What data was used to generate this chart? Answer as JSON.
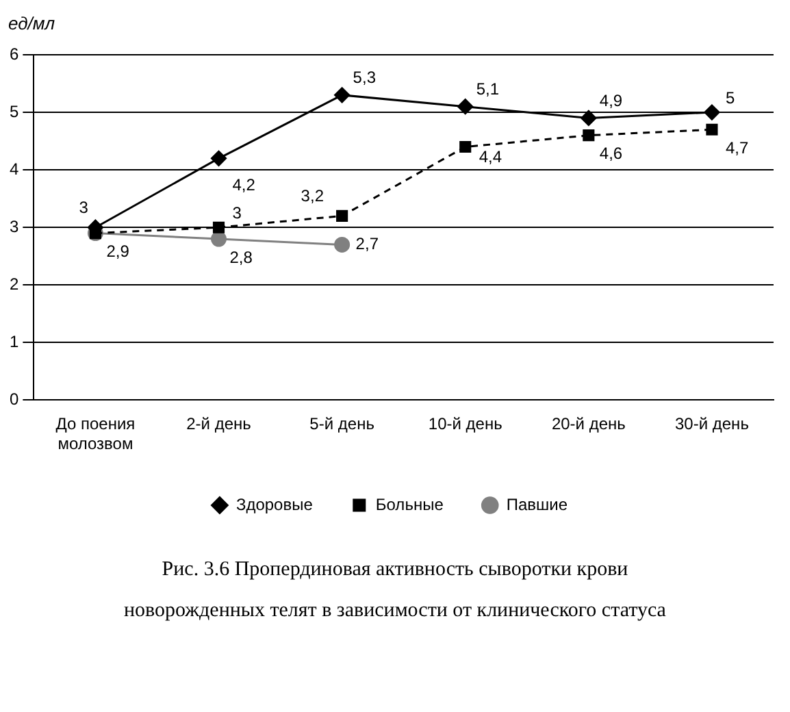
{
  "chart_data": {
    "type": "line",
    "title": "Рис. 3.6 Пропердиновая активность сыворотки крови новорожденных телят в зависимости от клинического статуса",
    "ylabel": "ед/мл",
    "categories": [
      "До поения молозвом",
      "2-й день",
      "5-й день",
      "10-й день",
      "20-й день",
      "30-й день"
    ],
    "series": [
      {
        "name": "Здоровые",
        "color": "#000000",
        "marker": "diamond",
        "line_style": "solid",
        "values": [
          3,
          4.2,
          5.3,
          5.1,
          4.9,
          5
        ],
        "value_labels": [
          "3",
          "4,2",
          "5,3",
          "5,1",
          "4,9",
          "5"
        ]
      },
      {
        "name": "Больные",
        "color": "#000000",
        "marker": "square",
        "line_style": "dashed",
        "values": [
          2.9,
          3,
          3.2,
          4.4,
          4.6,
          4.7
        ],
        "value_labels": [
          "2,9",
          "3",
          "3,2",
          "4,4",
          "4,6",
          "4,7"
        ]
      },
      {
        "name": "Павшие",
        "color": "#808080",
        "marker": "circle",
        "line_style": "solid",
        "values": [
          2.9,
          2.8,
          2.7,
          null,
          null,
          null
        ],
        "value_labels": [
          null,
          "2,8",
          "2,7",
          null,
          null,
          null
        ]
      }
    ],
    "ylim": [
      0,
      6
    ],
    "yticks": [
      0,
      1,
      2,
      3,
      4,
      5,
      6
    ],
    "grid": "y",
    "legend": "bottom"
  }
}
